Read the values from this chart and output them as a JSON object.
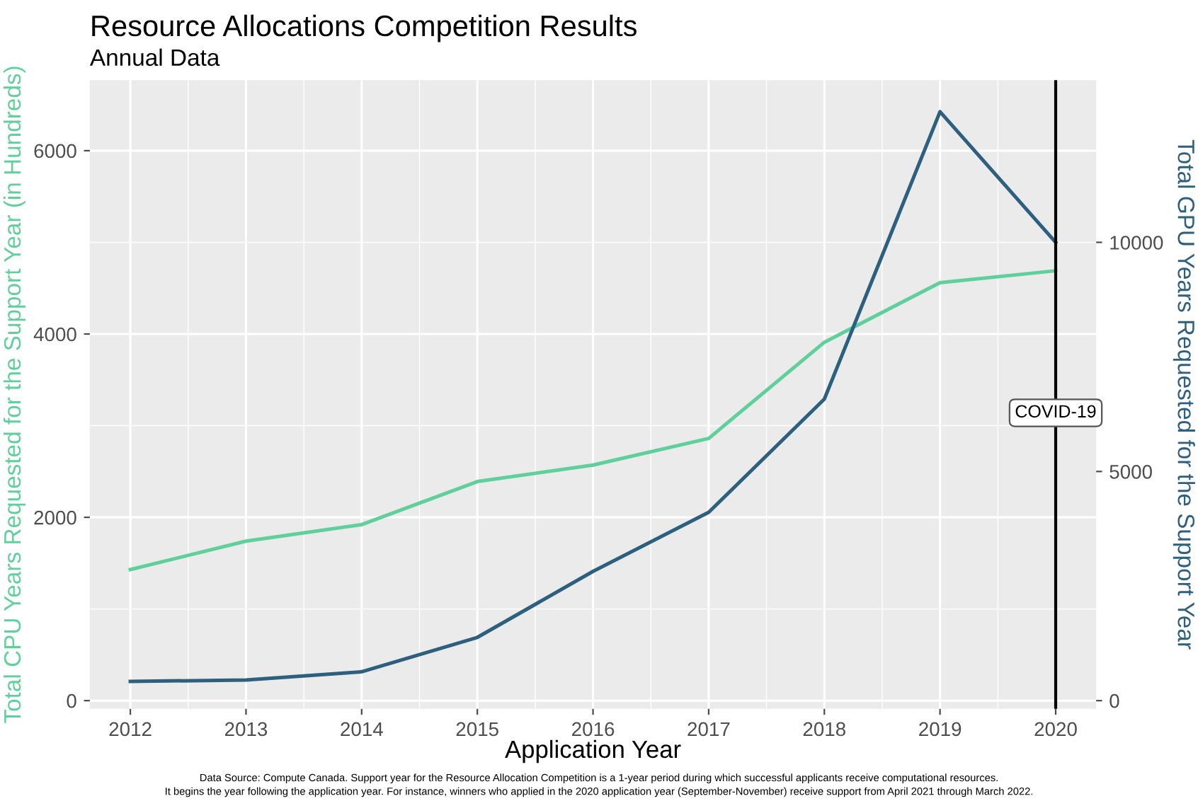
{
  "chart_data": {
    "type": "line",
    "title": "Resource Allocations Competition Results",
    "subtitle": "Annual Data",
    "xlabel": "Application Year",
    "ylabel": "Total CPU Years Requested for the Support Year (in Hundreds)",
    "y2label": "Total GPU Years Requested for the Support Year",
    "x": [
      2012,
      2013,
      2014,
      2015,
      2016,
      2017,
      2018,
      2019,
      2020
    ],
    "series": [
      {
        "color": "#5fd09c",
        "values": [
          1430,
          1740,
          1920,
          2390,
          2570,
          2860,
          3910,
          4560,
          4690
        ]
      },
      {
        "color": "#2d5f7e",
        "axis": "y2",
        "values": [
          420,
          450,
          630,
          1380,
          2820,
          4110,
          6580,
          12850,
          10000
        ]
      }
    ],
    "xlim": [
      2011.65,
      2020.35
    ],
    "xticks": [
      2012,
      2013,
      2014,
      2015,
      2016,
      2017,
      2018,
      2019,
      2020
    ],
    "ylim": [
      -90,
      6770
    ],
    "yticks": [
      0,
      2000,
      4000,
      6000
    ],
    "y2lim": [
      -180,
      13540
    ],
    "y2ticks": [
      0,
      5000,
      10000
    ],
    "ref_lines": [
      {
        "axis": "x",
        "value": 2020,
        "label": "COVID-19",
        "color": "#000000"
      }
    ],
    "grid": true,
    "annotations": [
      "Data Source: Compute Canada. Support year for the Resource Allocation Competition is a 1-year period during which successful applicants receive computational resources.",
      "It begins the year following the application year. For instance, winners who applied in the 2020 application year (September-November) receive support from April 2021 through March 2022."
    ]
  }
}
